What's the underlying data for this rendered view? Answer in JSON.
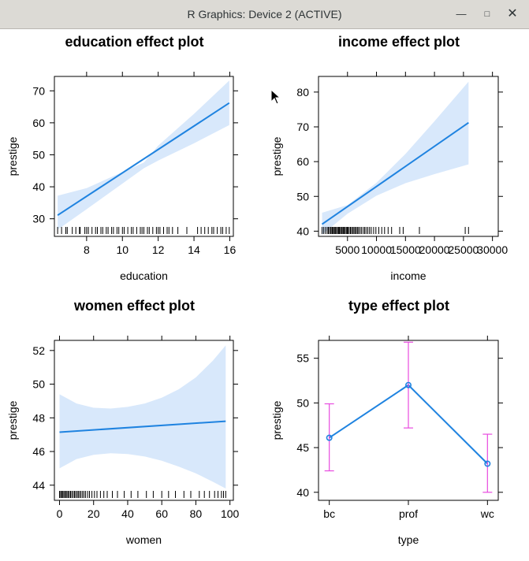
{
  "window": {
    "title": "R Graphics: Device 2 (ACTIVE)",
    "minimize_label": "—",
    "maximize_label": "□",
    "close_label": "✕"
  },
  "colors": {
    "band": "#d8e8fb",
    "line": "#1f83e0",
    "errorbar": "#e84be0",
    "axis": "#000000"
  },
  "chart_data": [
    {
      "id": "education",
      "type": "line",
      "title": "education effect plot",
      "xlabel": "education",
      "ylabel": "prestige",
      "xlim": [
        6.2,
        16.2
      ],
      "ylim": [
        24.5,
        74.5
      ],
      "xticks": [
        8,
        10,
        12,
        14,
        16
      ],
      "yticks": [
        30,
        40,
        50,
        60,
        70
      ],
      "line": {
        "x": [
          6.38,
          15.97
        ],
        "y": [
          31.1,
          66.2
        ]
      },
      "band": {
        "x": [
          6.38,
          8,
          10,
          11.2,
          12,
          14,
          15.97
        ],
        "lower": [
          26.6,
          33.0,
          41.0,
          45.8,
          48.2,
          53.6,
          59.3
        ],
        "upper": [
          37.2,
          39.6,
          44.6,
          47.6,
          52.9,
          62.8,
          73.2
        ]
      },
      "rug": [
        6.38,
        6.6,
        6.84,
        6.92,
        7.2,
        7.4,
        7.6,
        7.64,
        7.9,
        8.0,
        8.1,
        8.3,
        8.5,
        8.6,
        8.8,
        8.9,
        9.1,
        9.2,
        9.4,
        9.5,
        9.7,
        9.8,
        10.0,
        10.1,
        10.3,
        10.5,
        10.6,
        10.8,
        11.0,
        11.1,
        11.2,
        11.4,
        11.5,
        11.7,
        11.9,
        12.0,
        12.1,
        12.3,
        12.5,
        12.6,
        12.8,
        13.1,
        13.6,
        14.2,
        14.4,
        14.6,
        14.8,
        15.0,
        15.1,
        15.3,
        15.5,
        15.6,
        15.8,
        15.97
      ]
    },
    {
      "id": "income",
      "type": "line",
      "title": "income effect plot",
      "xlabel": "income",
      "ylabel": "prestige",
      "xlim": [
        0,
        31000
      ],
      "ylim": [
        38.5,
        84.5
      ],
      "xticks": [
        5000,
        10000,
        15000,
        20000,
        25000,
        30000
      ],
      "xticklabels": [
        "5000",
        "10000",
        "15000",
        "20000",
        "25000",
        "30000"
      ],
      "yticks": [
        40,
        50,
        60,
        70,
        80
      ],
      "line": {
        "x": [
          611,
          25879
        ],
        "y": [
          42.0,
          71.2
        ]
      },
      "band": {
        "x": [
          611,
          5000,
          10000,
          15000,
          20000,
          25879
        ],
        "lower": [
          39.0,
          45.0,
          50.2,
          53.8,
          56.4,
          59.2
        ],
        "upper": [
          45.3,
          47.5,
          53.9,
          62.2,
          71.6,
          83.0
        ]
      },
      "rug": [
        611,
        900,
        1200,
        1500,
        1700,
        1900,
        2100,
        2300,
        2450,
        2600,
        2800,
        2950,
        3100,
        3300,
        3450,
        3600,
        3800,
        3950,
        4100,
        4300,
        4450,
        4600,
        4800,
        4950,
        5100,
        5300,
        5500,
        5700,
        5900,
        6100,
        6300,
        6500,
        6700,
        6900,
        7150,
        7400,
        7700,
        7950,
        8200,
        8500,
        8800,
        9100,
        9500,
        9900,
        10400,
        10900,
        11400,
        12000,
        12600,
        14000,
        14600,
        17400,
        25300,
        25879
      ]
    },
    {
      "id": "women",
      "type": "line",
      "title": "women effect plot",
      "xlabel": "women",
      "ylabel": "prestige",
      "xlim": [
        -3,
        102
      ],
      "ylim": [
        43.1,
        52.6
      ],
      "xticks": [
        0,
        20,
        40,
        60,
        80,
        100
      ],
      "yticks": [
        44,
        46,
        48,
        50,
        52
      ],
      "line": {
        "x": [
          0,
          97.5
        ],
        "y": [
          47.15,
          47.8
        ]
      },
      "band": {
        "x": [
          0,
          10,
          20,
          30,
          40,
          50,
          60,
          70,
          80,
          90,
          97.5
        ],
        "lower": [
          45.0,
          45.55,
          45.8,
          45.9,
          45.85,
          45.7,
          45.45,
          45.1,
          44.7,
          44.2,
          43.8
        ],
        "upper": [
          49.4,
          48.85,
          48.6,
          48.55,
          48.65,
          48.85,
          49.2,
          49.7,
          50.4,
          51.4,
          52.3
        ]
      },
      "rug": [
        0,
        0.7,
        1.2,
        1.8,
        2.5,
        3.1,
        3.8,
        4.4,
        5.1,
        5.8,
        6.5,
        7.2,
        8.0,
        8.8,
        9.5,
        10.3,
        11.0,
        11.8,
        12.6,
        13.5,
        14.4,
        15.3,
        16.5,
        17.6,
        19.0,
        20.5,
        22.0,
        24.0,
        26.0,
        28.0,
        31.0,
        34.0,
        38.0,
        42.0,
        46.0,
        51.0,
        55.0,
        60.0,
        64.0,
        68.0,
        73.0,
        77.0,
        82.0,
        85.0,
        88.0,
        91.0,
        93.0,
        95.0,
        96.2,
        97.5
      ]
    },
    {
      "id": "type",
      "type": "line",
      "title": "type effect plot",
      "xlabel": "type",
      "ylabel": "prestige",
      "categories": [
        "bc",
        "prof",
        "wc"
      ],
      "ylim": [
        39.1,
        57.0
      ],
      "yticks": [
        40,
        45,
        50,
        55
      ],
      "values": [
        46.1,
        52.0,
        43.2
      ],
      "lower": [
        42.4,
        47.2,
        40.0
      ],
      "upper": [
        49.9,
        56.8,
        46.5
      ]
    }
  ]
}
